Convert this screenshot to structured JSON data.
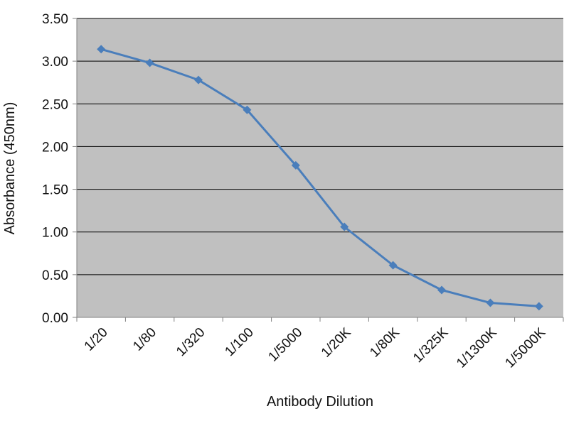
{
  "chart_data": {
    "type": "line",
    "title": "",
    "xlabel": "Antibody Dilution",
    "ylabel": "Absorbance (450nm)",
    "categories": [
      "1/20",
      "1/80",
      "1/320",
      "1/100",
      "1/5000",
      "1/20K",
      "1/80K",
      "1/325K",
      "1/1300K",
      "1/5000K"
    ],
    "y_ticks": [
      "0.00",
      "0.50",
      "1.00",
      "1.50",
      "2.00",
      "2.50",
      "3.00",
      "3.50"
    ],
    "ylim": [
      0,
      3.5
    ],
    "grid": "horizontal",
    "legend": "none",
    "series": [
      {
        "values": [
          3.14,
          2.98,
          2.78,
          2.43,
          1.78,
          1.06,
          0.61,
          0.32,
          0.17,
          0.13
        ]
      }
    ],
    "colors": {
      "plot_background": "#c0c0c0",
      "line": "#4a7ebb",
      "gridline": "#000000",
      "axis": "#808080"
    }
  }
}
